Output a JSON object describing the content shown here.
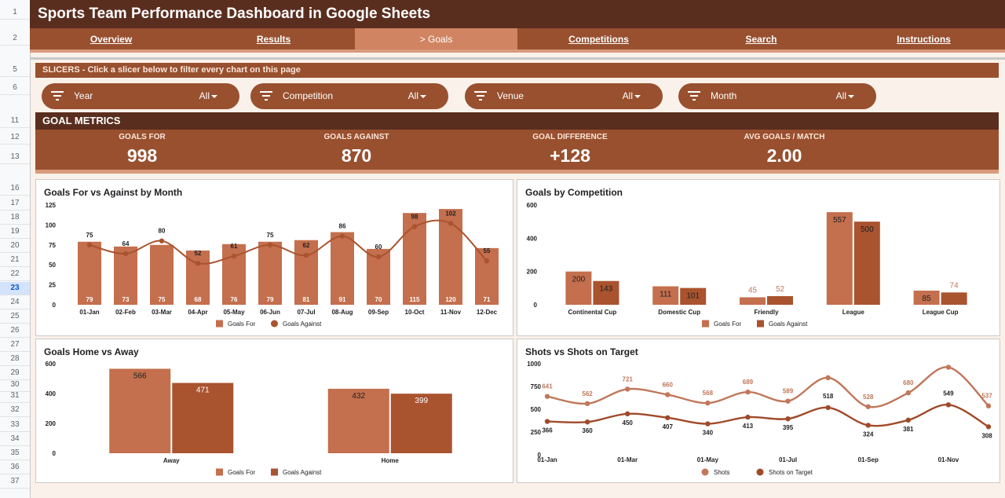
{
  "spreadsheet": {
    "row_numbers": [
      {
        "n": "1",
        "y": 16
      },
      {
        "n": "2",
        "y": 49
      },
      {
        "n": "5",
        "y": 89
      },
      {
        "n": "6",
        "y": 112
      },
      {
        "n": "11",
        "y": 154
      },
      {
        "n": "12",
        "y": 175
      },
      {
        "n": "13",
        "y": 200
      },
      {
        "n": "16",
        "y": 240
      },
      {
        "n": "17",
        "y": 259
      },
      {
        "n": "18",
        "y": 277
      },
      {
        "n": "19",
        "y": 295
      },
      {
        "n": "20",
        "y": 313
      },
      {
        "n": "21",
        "y": 331
      },
      {
        "n": "22",
        "y": 349
      },
      {
        "n": "23",
        "y": 367
      },
      {
        "n": "24",
        "y": 385
      },
      {
        "n": "25",
        "y": 403
      },
      {
        "n": "26",
        "y": 421
      },
      {
        "n": "27",
        "y": 439
      },
      {
        "n": "28",
        "y": 457
      },
      {
        "n": "29",
        "y": 475
      },
      {
        "n": "30",
        "y": 490
      },
      {
        "n": "31",
        "y": 504
      },
      {
        "n": "32",
        "y": 522
      },
      {
        "n": "33",
        "y": 541
      },
      {
        "n": "34",
        "y": 559
      },
      {
        "n": "35",
        "y": 577
      },
      {
        "n": "36",
        "y": 595
      },
      {
        "n": "37",
        "y": 613
      }
    ],
    "selected_row": "23"
  },
  "header": {
    "title": "Sports Team Performance Dashboard in Google Sheets",
    "nav": [
      "Overview",
      "Results",
      "> Goals",
      "Competitions",
      "Search",
      "Instructions"
    ],
    "active_nav": 2
  },
  "slicers": {
    "bar_label": "SLICERS - Click a slicer below to filter every chart on this page",
    "items": [
      {
        "label": "Year",
        "value": "All"
      },
      {
        "label": "Competition",
        "value": "All"
      },
      {
        "label": "Venue",
        "value": "All"
      },
      {
        "label": "Month",
        "value": "All"
      }
    ]
  },
  "metrics": {
    "section_label": "GOAL METRICS",
    "items": [
      {
        "label": "GOALS FOR",
        "value": "998"
      },
      {
        "label": "GOALS AGAINST",
        "value": "870"
      },
      {
        "label": "GOAL DIFFERENCE",
        "value": "+128"
      },
      {
        "label": "AVG GOALS / MATCH",
        "value": "2.00"
      }
    ]
  },
  "colors": {
    "dark": "#5a2e1f",
    "medium": "#98502f",
    "light_bar": "#c46f4d",
    "dark_bar": "#a9532f",
    "shots_line": "#c0775a",
    "target_line": "#a04a2a"
  },
  "chart_data": [
    {
      "type": "bar",
      "title": "Goals For vs Against by Month",
      "categories": [
        "01-Jan",
        "02-Feb",
        "03-Mar",
        "04-Apr",
        "05-May",
        "06-Jun",
        "07-Jul",
        "08-Aug",
        "09-Sep",
        "10-Oct",
        "11-Nov",
        "12-Dec"
      ],
      "series": [
        {
          "name": "Goals For",
          "values": [
            79,
            73,
            75,
            68,
            76,
            79,
            81,
            91,
            70,
            115,
            120,
            71
          ]
        },
        {
          "name": "Goals Against",
          "values": [
            75,
            64,
            80,
            52,
            61,
            75,
            62,
            86,
            60,
            98,
            102,
            55
          ]
        }
      ],
      "yticks": [
        0,
        25,
        50,
        75,
        100,
        125
      ],
      "ylim": [
        0,
        125
      ],
      "legend": "bottom"
    },
    {
      "type": "bar",
      "title": "Goals by Competition",
      "categories": [
        "Continental Cup",
        "Domestic Cup",
        "Friendly",
        "League",
        "League Cup"
      ],
      "series": [
        {
          "name": "Goals For",
          "values": [
            200,
            111,
            45,
            557,
            85
          ]
        },
        {
          "name": "Goals Against",
          "values": [
            143,
            101,
            52,
            500,
            74
          ]
        }
      ],
      "yticks": [
        0,
        200,
        400,
        600
      ],
      "ylim": [
        0,
        600
      ],
      "legend": "bottom"
    },
    {
      "type": "bar",
      "title": "Goals Home vs Away",
      "categories": [
        "Away",
        "Home"
      ],
      "series": [
        {
          "name": "Goals For",
          "values": [
            566,
            432
          ]
        },
        {
          "name": "Goals Against",
          "values": [
            471,
            399
          ]
        }
      ],
      "yticks": [
        0,
        200,
        400,
        600
      ],
      "ylim": [
        0,
        600
      ],
      "legend": "bottom"
    },
    {
      "type": "line",
      "title": "Shots vs Shots on Target",
      "x_ticks": [
        "01-Jan",
        "01-Mar",
        "01-May",
        "01-Jul",
        "01-Sep",
        "01-Nov"
      ],
      "series": [
        {
          "name": "Shots",
          "values": [
            641,
            562,
            721,
            660,
            568,
            689,
            589,
            846,
            528,
            680,
            961,
            537
          ]
        },
        {
          "name": "Shots on Target",
          "values": [
            366,
            360,
            450,
            407,
            340,
            413,
            395,
            518,
            324,
            381,
            549,
            308
          ]
        }
      ],
      "point_labels_shots": [
        "641",
        "562",
        "721",
        "660",
        "568",
        "689",
        "589",
        "",
        "528",
        "680",
        "",
        "537"
      ],
      "point_labels_target": [
        "366",
        "360",
        "450",
        "407",
        "340",
        "413",
        "395",
        "518",
        "324",
        "381",
        "549",
        "308"
      ],
      "yticks": [
        0,
        250,
        500,
        750,
        1000
      ],
      "ylim": [
        0,
        1000
      ],
      "legend": "bottom"
    }
  ]
}
